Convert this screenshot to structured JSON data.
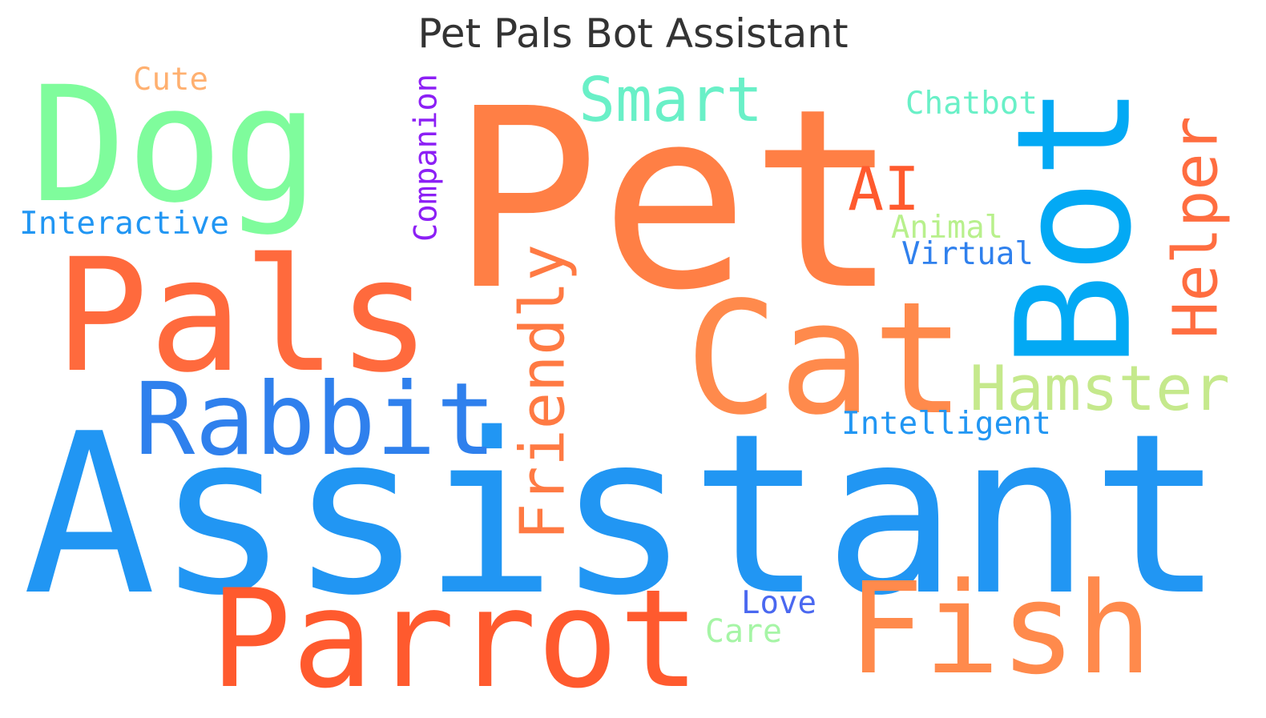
{
  "title": "Pet Pals Bot Assistant",
  "words": [
    {
      "text": "Pet",
      "color": "#ff7f45",
      "orientation": "horizontal"
    },
    {
      "text": "Assistant",
      "color": "#2196f3",
      "orientation": "horizontal"
    },
    {
      "text": "Pals",
      "color": "#ff6a3d",
      "orientation": "horizontal"
    },
    {
      "text": "Dog",
      "color": "#7ffc9c",
      "orientation": "horizontal"
    },
    {
      "text": "Bot",
      "color": "#03a9f4",
      "orientation": "vertical"
    },
    {
      "text": "Cat",
      "color": "#ff8a4c",
      "orientation": "horizontal"
    },
    {
      "text": "Parrot",
      "color": "#ff5a2e",
      "orientation": "horizontal"
    },
    {
      "text": "Fish",
      "color": "#ff8a4c",
      "orientation": "horizontal"
    },
    {
      "text": "Rabbit",
      "color": "#2f80ed",
      "orientation": "horizontal"
    },
    {
      "text": "Friendly",
      "color": "#ff7a43",
      "orientation": "vertical"
    },
    {
      "text": "Hamster",
      "color": "#c5e98c",
      "orientation": "horizontal"
    },
    {
      "text": "Helper",
      "color": "#ff6d40",
      "orientation": "vertical"
    },
    {
      "text": "Smart",
      "color": "#69f0c7",
      "orientation": "horizontal"
    },
    {
      "text": "AI",
      "color": "#ff5a2e",
      "orientation": "horizontal"
    },
    {
      "text": "Companion",
      "color": "#8c1ff5",
      "orientation": "vertical"
    },
    {
      "text": "Intelligent",
      "color": "#2196f3",
      "orientation": "horizontal"
    },
    {
      "text": "Interactive",
      "color": "#2196f3",
      "orientation": "horizontal"
    },
    {
      "text": "Virtual",
      "color": "#2f80ed",
      "orientation": "horizontal"
    },
    {
      "text": "Animal",
      "color": "#b8f08c",
      "orientation": "horizontal"
    },
    {
      "text": "Chatbot",
      "color": "#69f0c7",
      "orientation": "horizontal"
    },
    {
      "text": "Cute",
      "color": "#ffb070",
      "orientation": "horizontal"
    },
    {
      "text": "Love",
      "color": "#4a68f0",
      "orientation": "horizontal"
    },
    {
      "text": "Care",
      "color": "#a6f5a6",
      "orientation": "horizontal"
    }
  ]
}
